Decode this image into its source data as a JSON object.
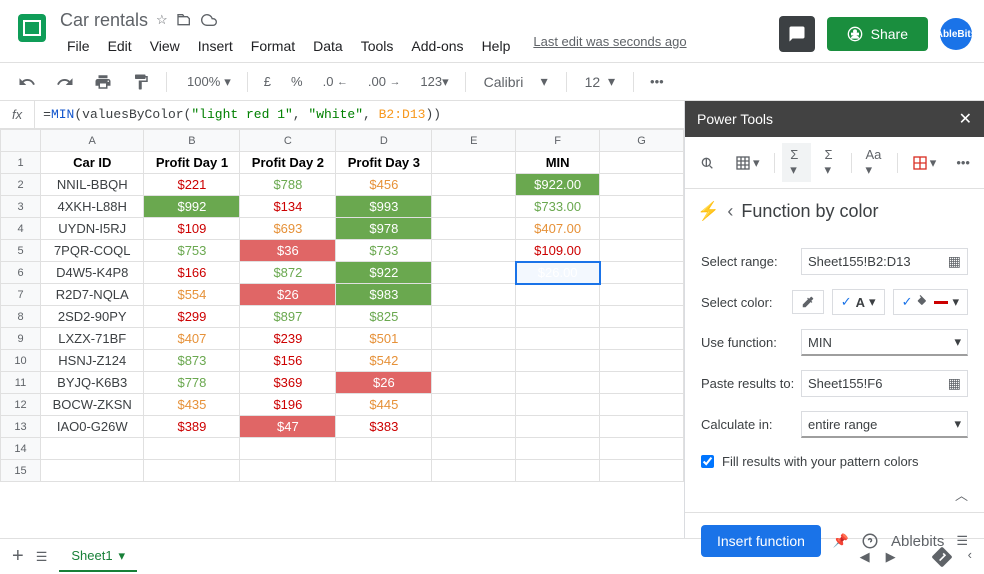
{
  "doc": {
    "title": "Car rentals",
    "last_edit": "Last edit was seconds ago"
  },
  "menu": {
    "file": "File",
    "edit": "Edit",
    "view": "View",
    "insert": "Insert",
    "format": "Format",
    "data": "Data",
    "tools": "Tools",
    "addons": "Add-ons",
    "help": "Help"
  },
  "share": {
    "label": "Share"
  },
  "avatar": {
    "text": "AbleBits"
  },
  "toolbar": {
    "zoom": "100%",
    "font": "Calibri",
    "fontsize": "12",
    "currency": "£",
    "percent": "%",
    "dec_dec": ".0",
    "dec_inc": ".00",
    "numfmt": "123"
  },
  "formula": {
    "fx": "fx",
    "raw": "=MIN(valuesByColor(\"light red 1\", \"white\", B2:D13))"
  },
  "cols": [
    "A",
    "B",
    "C",
    "D",
    "E",
    "F",
    "G"
  ],
  "table": {
    "headers": {
      "a": "Car ID",
      "b": "Profit Day 1",
      "c": "Profit Day 2",
      "d": "Profit Day 3",
      "f": "MIN"
    },
    "rows": [
      {
        "id": "NNIL-BBQH",
        "d1": {
          "v": "$221",
          "c": "red-text"
        },
        "d2": {
          "v": "$788",
          "c": "green-text"
        },
        "d3": {
          "v": "$456",
          "c": "orange-text"
        },
        "min": {
          "v": "$922.00",
          "c": "green-bg"
        }
      },
      {
        "id": "4XKH-L88H",
        "d1": {
          "v": "$992",
          "c": "green-bg"
        },
        "d2": {
          "v": "$134",
          "c": "red-text"
        },
        "d3": {
          "v": "$993",
          "c": "green-bg"
        },
        "min": {
          "v": "$733.00",
          "c": "green-text"
        }
      },
      {
        "id": "UYDN-I5RJ",
        "d1": {
          "v": "$109",
          "c": "red-text"
        },
        "d2": {
          "v": "$693",
          "c": "orange-text"
        },
        "d3": {
          "v": "$978",
          "c": "green-bg"
        },
        "min": {
          "v": "$407.00",
          "c": "orange-text"
        }
      },
      {
        "id": "7PQR-COQL",
        "d1": {
          "v": "$753",
          "c": "green-text"
        },
        "d2": {
          "v": "$36",
          "c": "red-bg"
        },
        "d3": {
          "v": "$733",
          "c": "green-text"
        },
        "min": {
          "v": "$109.00",
          "c": "red-text"
        }
      },
      {
        "id": "D4W5-K4P8",
        "d1": {
          "v": "$166",
          "c": "red-text"
        },
        "d2": {
          "v": "$872",
          "c": "green-text"
        },
        "d3": {
          "v": "$922",
          "c": "green-bg"
        },
        "min": {
          "v": "$26.00",
          "c": "red-bg",
          "sel": true
        }
      },
      {
        "id": "R2D7-NQLA",
        "d1": {
          "v": "$554",
          "c": "orange-text"
        },
        "d2": {
          "v": "$26",
          "c": "red-bg"
        },
        "d3": {
          "v": "$983",
          "c": "green-bg"
        },
        "min": {
          "v": "",
          "c": ""
        }
      },
      {
        "id": "2SD2-90PY",
        "d1": {
          "v": "$299",
          "c": "red-text"
        },
        "d2": {
          "v": "$897",
          "c": "green-text"
        },
        "d3": {
          "v": "$825",
          "c": "green-text"
        },
        "min": {
          "v": "",
          "c": ""
        }
      },
      {
        "id": "LXZX-71BF",
        "d1": {
          "v": "$407",
          "c": "orange-text"
        },
        "d2": {
          "v": "$239",
          "c": "red-text"
        },
        "d3": {
          "v": "$501",
          "c": "orange-text"
        },
        "min": {
          "v": "",
          "c": ""
        }
      },
      {
        "id": "HSNJ-Z124",
        "d1": {
          "v": "$873",
          "c": "green-text"
        },
        "d2": {
          "v": "$156",
          "c": "red-text"
        },
        "d3": {
          "v": "$542",
          "c": "orange-text"
        },
        "min": {
          "v": "",
          "c": ""
        }
      },
      {
        "id": "BYJQ-K6B3",
        "d1": {
          "v": "$778",
          "c": "green-text"
        },
        "d2": {
          "v": "$369",
          "c": "red-text"
        },
        "d3": {
          "v": "$26",
          "c": "red-bg"
        },
        "min": {
          "v": "",
          "c": ""
        }
      },
      {
        "id": "BOCW-ZKSN",
        "d1": {
          "v": "$435",
          "c": "orange-text"
        },
        "d2": {
          "v": "$196",
          "c": "red-text"
        },
        "d3": {
          "v": "$445",
          "c": "orange-text"
        },
        "min": {
          "v": "",
          "c": ""
        }
      },
      {
        "id": "IAO0-G26W",
        "d1": {
          "v": "$389",
          "c": "red-text"
        },
        "d2": {
          "v": "$47",
          "c": "red-bg"
        },
        "d3": {
          "v": "$383",
          "c": "red-text"
        },
        "min": {
          "v": "",
          "c": ""
        }
      }
    ]
  },
  "sidebar": {
    "title": "Power Tools",
    "section_title": "Function by color",
    "select_range_label": "Select range:",
    "select_range_value": "Sheet155!B2:D13",
    "select_color_label": "Select color:",
    "font_letter": "A",
    "use_function_label": "Use function:",
    "use_function_value": "MIN",
    "paste_results_label": "Paste results to:",
    "paste_results_value": "Sheet155!F6",
    "calculate_in_label": "Calculate in:",
    "calculate_in_value": "entire range",
    "fill_results_label": "Fill results with your pattern colors",
    "insert_btn": "Insert function",
    "ablebits": "Ablebits"
  },
  "tabs": {
    "sheet1": "Sheet1"
  }
}
